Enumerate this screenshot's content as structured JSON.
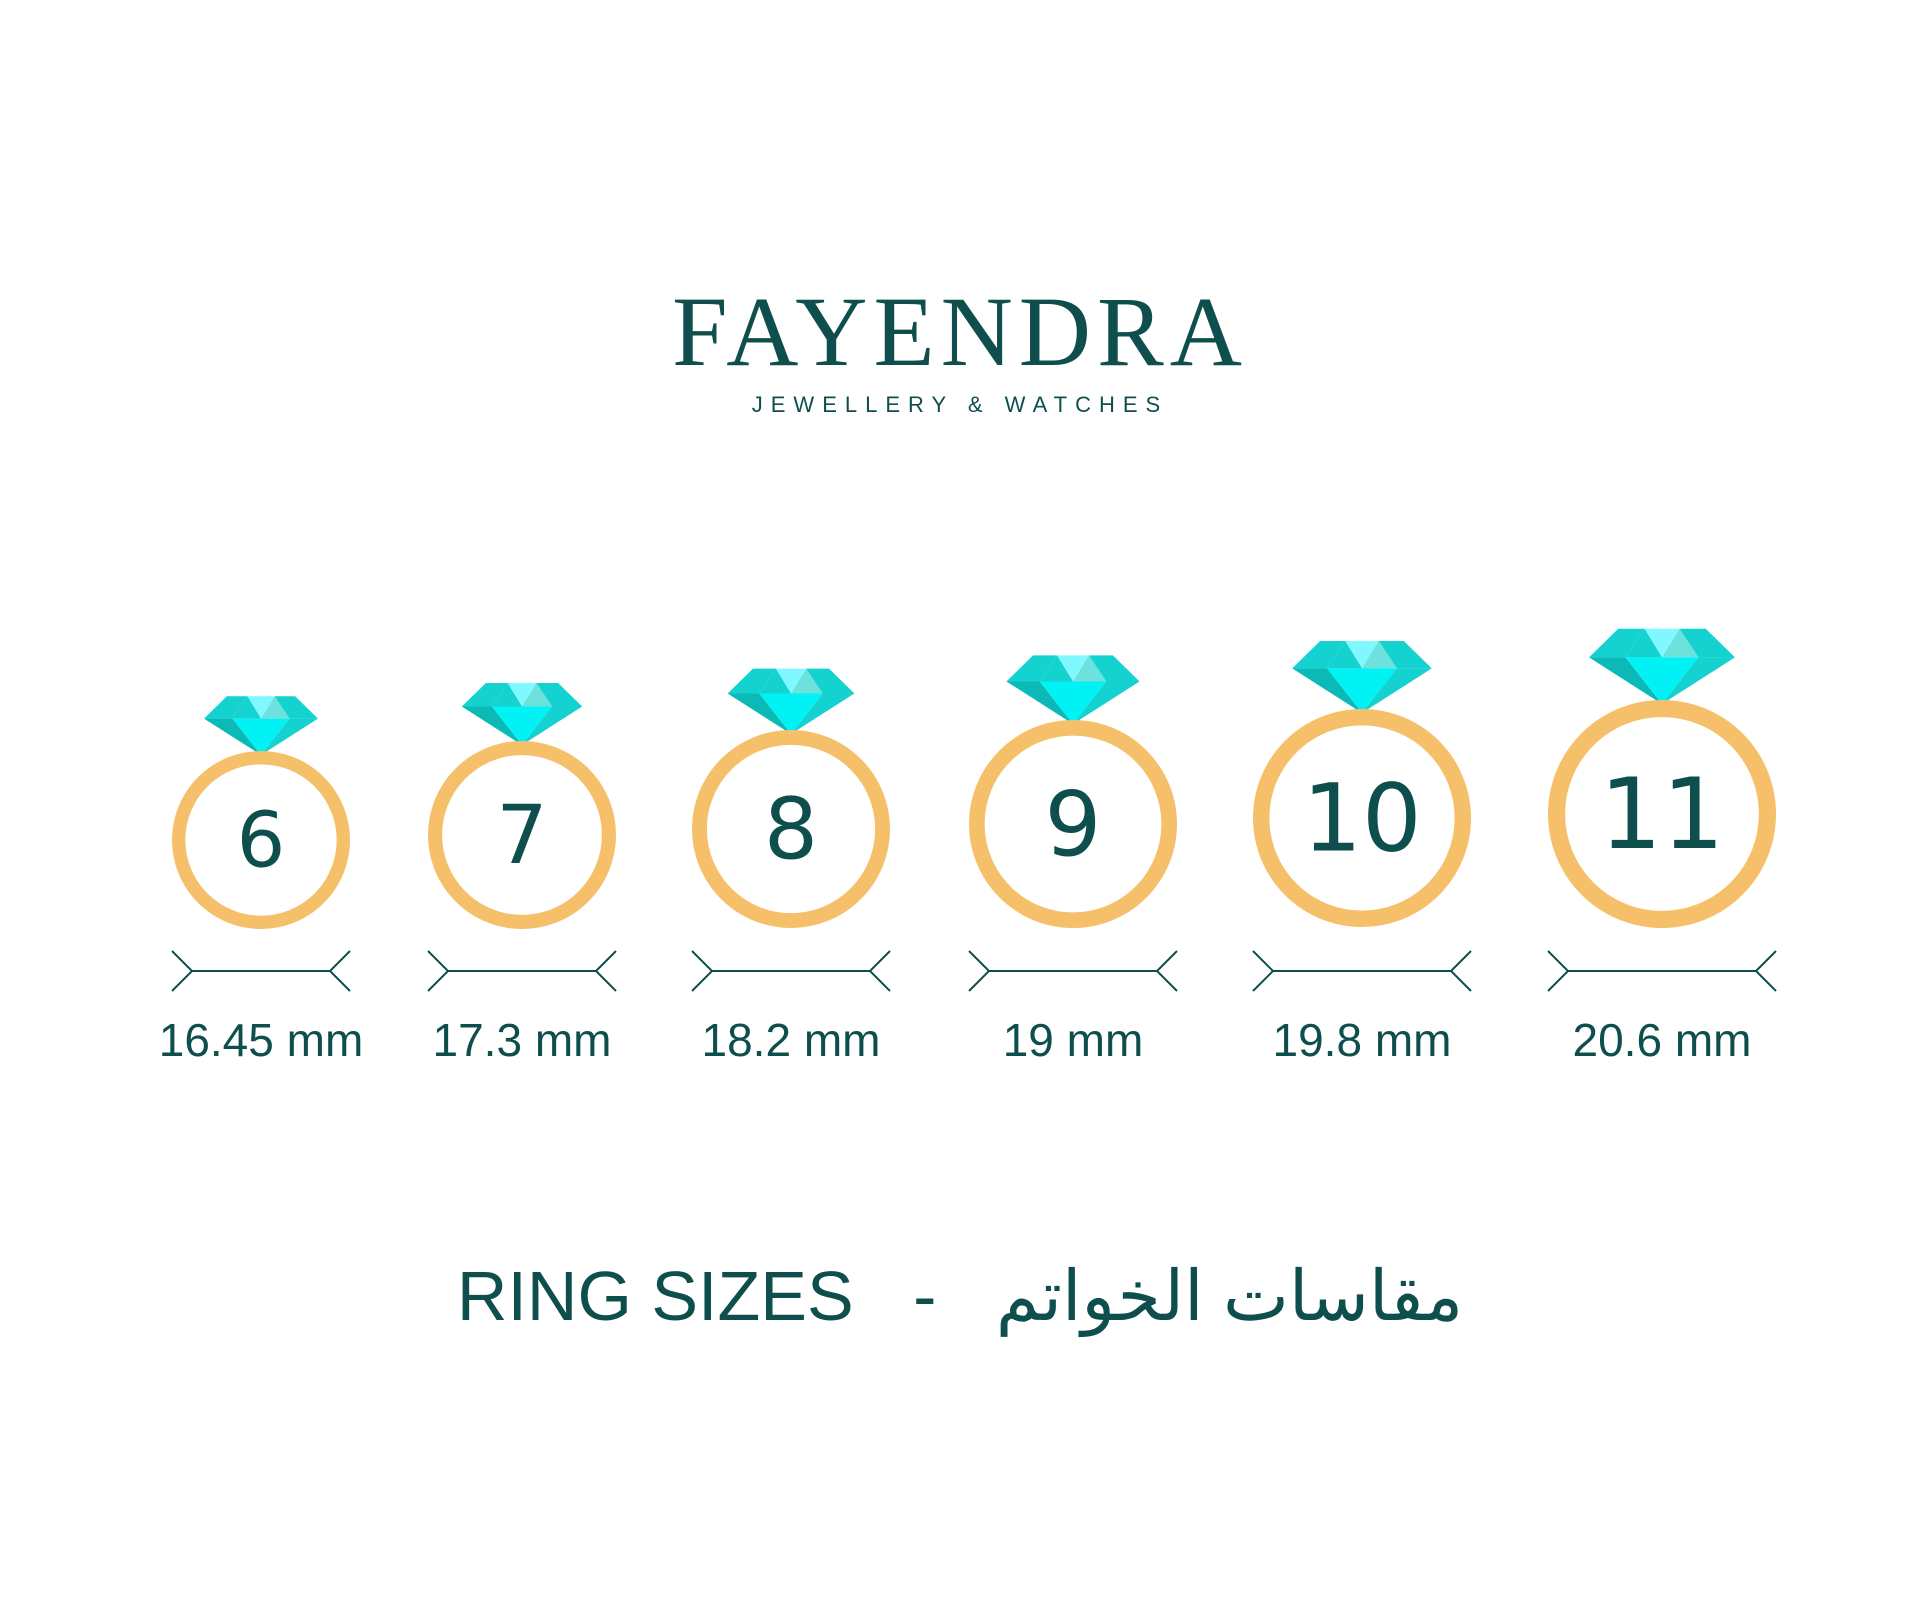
{
  "brand": {
    "name": "FAYENDRA",
    "tagline": "JEWELLERY & WATCHES"
  },
  "colors": {
    "text": "#0e4f4d",
    "band": "#f6bf69",
    "gem_light": "#7ff9ff",
    "gem_mid": "#13d2cf",
    "gem_dark": "#0bbab6",
    "gem_bright": "#00f2f5",
    "gem_pale": "#6de2dd"
  },
  "rings": [
    {
      "size": "6",
      "diameter": "16.45 mm"
    },
    {
      "size": "7",
      "diameter": "17.3 mm"
    },
    {
      "size": "8",
      "diameter": "18.2 mm"
    },
    {
      "size": "9",
      "diameter": "19 mm"
    },
    {
      "size": "10",
      "diameter": "19.8 mm"
    },
    {
      "size": "11",
      "diameter": "20.6 mm"
    }
  ],
  "footer": {
    "title_en": "RING SIZES",
    "separator": "-",
    "title_ar": "مقاسات الخواتم"
  }
}
